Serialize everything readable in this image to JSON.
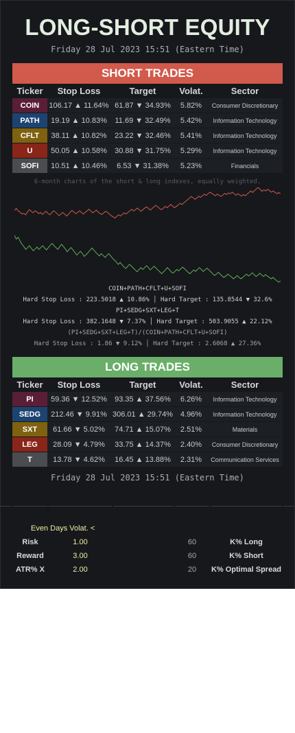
{
  "title": "LONG-SHORT EQUITY",
  "datetime": "Friday 28 Jul 2023 15:51 (Eastern Time)",
  "headers": [
    "Ticker",
    "Stop Loss",
    "Target",
    "Volat.",
    "Sector"
  ],
  "short": {
    "banner": "SHORT TRADES",
    "rows": [
      {
        "ticker": "COIN",
        "color": "#5a1f36",
        "stop": "106.17 ▲ 11.64%",
        "target": "61.87 ▼ 34.93%",
        "volat": "5.82%",
        "sector": "Consumer Discretionary"
      },
      {
        "ticker": "PATH",
        "color": "#1d4470",
        "stop": "19.19 ▲ 10.83%",
        "target": "11.69 ▼ 32.49%",
        "volat": "5.42%",
        "sector": "Information Technology"
      },
      {
        "ticker": "CFLT",
        "color": "#7e6210",
        "stop": "38.11 ▲ 10.82%",
        "target": "23.22 ▼ 32.46%",
        "volat": "5.41%",
        "sector": "Information Technology"
      },
      {
        "ticker": "U",
        "color": "#8a2519",
        "stop": "50.05 ▲ 10.58%",
        "target": "30.88 ▼ 31.75%",
        "volat": "5.29%",
        "sector": "Information Technology"
      },
      {
        "ticker": "SOFI",
        "color": "#4a4c4f",
        "stop": "10.51 ▲ 10.46%",
        "target": "6.53 ▼ 31.38%",
        "volat": "5.23%",
        "sector": "Financials"
      }
    ]
  },
  "chart_caption": "6-month charts of the short & long indexes, equally weighted.",
  "chart_data": {
    "type": "line",
    "series": [
      {
        "color": "#d25a4c",
        "values": [
          0.42,
          0.47,
          0.41,
          0.38,
          0.33,
          0.35,
          0.31,
          0.38,
          0.44,
          0.4,
          0.36,
          0.41,
          0.39,
          0.34,
          0.37,
          0.32,
          0.36,
          0.4,
          0.35,
          0.31,
          0.36,
          0.41,
          0.38,
          0.34,
          0.29,
          0.33,
          0.37,
          0.33,
          0.28,
          0.32,
          0.38,
          0.42,
          0.38,
          0.34,
          0.37,
          0.41,
          0.37,
          0.33,
          0.37,
          0.41,
          0.45,
          0.41,
          0.36,
          0.39,
          0.43,
          0.38,
          0.34,
          0.32,
          0.36,
          0.4,
          0.37,
          0.33,
          0.29,
          0.26,
          0.23,
          0.27,
          0.31,
          0.28,
          0.32,
          0.36,
          0.33,
          0.37,
          0.41,
          0.45,
          0.41,
          0.44,
          0.48,
          0.44,
          0.4,
          0.44,
          0.48,
          0.51,
          0.47,
          0.43,
          0.47,
          0.51,
          0.55,
          0.51,
          0.47,
          0.44,
          0.48,
          0.52,
          0.49,
          0.53,
          0.57,
          0.53,
          0.49,
          0.52,
          0.56,
          0.6,
          0.57,
          0.61,
          0.65,
          0.69,
          0.73,
          0.77,
          0.74,
          0.7,
          0.73,
          0.78,
          0.75,
          0.79,
          0.83,
          0.8,
          0.84,
          0.88,
          0.85,
          0.82,
          0.79,
          0.83,
          0.8,
          0.77,
          0.81,
          0.85,
          0.82,
          0.86,
          0.84,
          0.88,
          0.84,
          0.8,
          0.84,
          0.81,
          0.78,
          0.82,
          0.79,
          0.83,
          0.87,
          0.91,
          0.87,
          0.92,
          0.96,
          1.0,
          0.95,
          0.9,
          0.94,
          0.91,
          0.95,
          0.92,
          0.88,
          0.91,
          0.87,
          0.84,
          0.87,
          0.84
        ]
      },
      {
        "color": "#64ae58",
        "values": [
          1.0,
          0.92,
          0.96,
          0.88,
          0.81,
          0.76,
          0.7,
          0.74,
          0.78,
          0.72,
          0.67,
          0.71,
          0.75,
          0.7,
          0.74,
          0.78,
          0.73,
          0.69,
          0.74,
          0.79,
          0.83,
          0.78,
          0.74,
          0.7,
          0.76,
          0.81,
          0.76,
          0.71,
          0.65,
          0.7,
          0.74,
          0.69,
          0.64,
          0.58,
          0.62,
          0.66,
          0.61,
          0.55,
          0.59,
          0.63,
          0.68,
          0.73,
          0.69,
          0.64,
          0.6,
          0.56,
          0.61,
          0.57,
          0.53,
          0.57,
          0.61,
          0.56,
          0.51,
          0.47,
          0.43,
          0.38,
          0.42,
          0.37,
          0.33,
          0.29,
          0.34,
          0.38,
          0.34,
          0.3,
          0.26,
          0.22,
          0.27,
          0.31,
          0.27,
          0.31,
          0.35,
          0.31,
          0.26,
          0.3,
          0.34,
          0.3,
          0.26,
          0.22,
          0.18,
          0.22,
          0.26,
          0.31,
          0.27,
          0.22,
          0.19,
          0.23,
          0.27,
          0.24,
          0.28,
          0.32,
          0.29,
          0.25,
          0.21,
          0.18,
          0.22,
          0.26,
          0.23,
          0.27,
          0.31,
          0.27,
          0.23,
          0.26,
          0.3,
          0.26,
          0.22,
          0.18,
          0.14,
          0.17,
          0.21,
          0.17,
          0.13,
          0.1,
          0.13,
          0.17,
          0.14,
          0.11,
          0.07,
          0.1,
          0.14,
          0.1,
          0.07,
          0.1,
          0.14,
          0.17,
          0.13,
          0.16,
          0.2,
          0.16,
          0.12,
          0.15,
          0.19,
          0.15,
          0.12,
          0.16,
          0.13,
          0.1,
          0.07,
          0.1,
          0.06,
          0.03,
          0.0,
          0.02
        ]
      }
    ]
  },
  "short_formula": "COIN+PATH+CFLT+U+SOFI",
  "short_stats": "Hard Stop Loss : 223.5018 ▲ 10.86% │ Hard Target : 135.8544 ▼ 32.6%",
  "long_formula": "PI+SEDG+SXT+LEG+T",
  "long_stats": "Hard Stop Loss : 382.1648 ▼ 7.37% │ Hard Target : 503.9055 ▲ 22.12%",
  "ratio_formula": "(PI+SEDG+SXT+LEG+T)/(COIN+PATH+CFLT+U+SOFI)",
  "ratio_stats": "Hard Stop Loss : 1.86 ▼ 9.12% │ Hard Target : 2.6068 ▲ 27.36%",
  "long": {
    "banner": "LONG TRADES",
    "rows": [
      {
        "ticker": "PI",
        "color": "#5a1f36",
        "stop": "59.36 ▼ 12.52%",
        "target": "93.35 ▲ 37.56%",
        "volat": "6.26%",
        "sector": "Information Technology"
      },
      {
        "ticker": "SEDG",
        "color": "#1d4470",
        "stop": "212.46 ▼ 9.91%",
        "target": "306.01 ▲ 29.74%",
        "volat": "4.96%",
        "sector": "Information Technology"
      },
      {
        "ticker": "SXT",
        "color": "#7e6210",
        "stop": "61.66 ▼ 5.02%",
        "target": "74.71 ▲ 15.07%",
        "volat": "2.51%",
        "sector": "Materials"
      },
      {
        "ticker": "LEG",
        "color": "#8a2519",
        "stop": "28.09 ▼ 4.79%",
        "target": "33.75 ▲ 14.37%",
        "volat": "2.40%",
        "sector": "Consumer Discretionary"
      },
      {
        "ticker": "T",
        "color": "#4a4c4f",
        "stop": "13.78 ▼ 4.62%",
        "target": "16.45 ▲ 13.88%",
        "volat": "2.31%",
        "sector": "Communication Services"
      }
    ]
  },
  "params": {
    "even_days": "Even Days Volat. <",
    "risk_label": "Risk",
    "risk_value": "1.00",
    "reward_label": "Reward",
    "reward_value": "3.00",
    "atr_label": "ATR% X",
    "atr_value": "2.00",
    "k_long_value": "60",
    "k_long_label": "K% Long",
    "k_short_value": "60",
    "k_short_label": "K% Short",
    "k_spread_value": "20",
    "k_spread_label": "K% Optimal Spread"
  }
}
